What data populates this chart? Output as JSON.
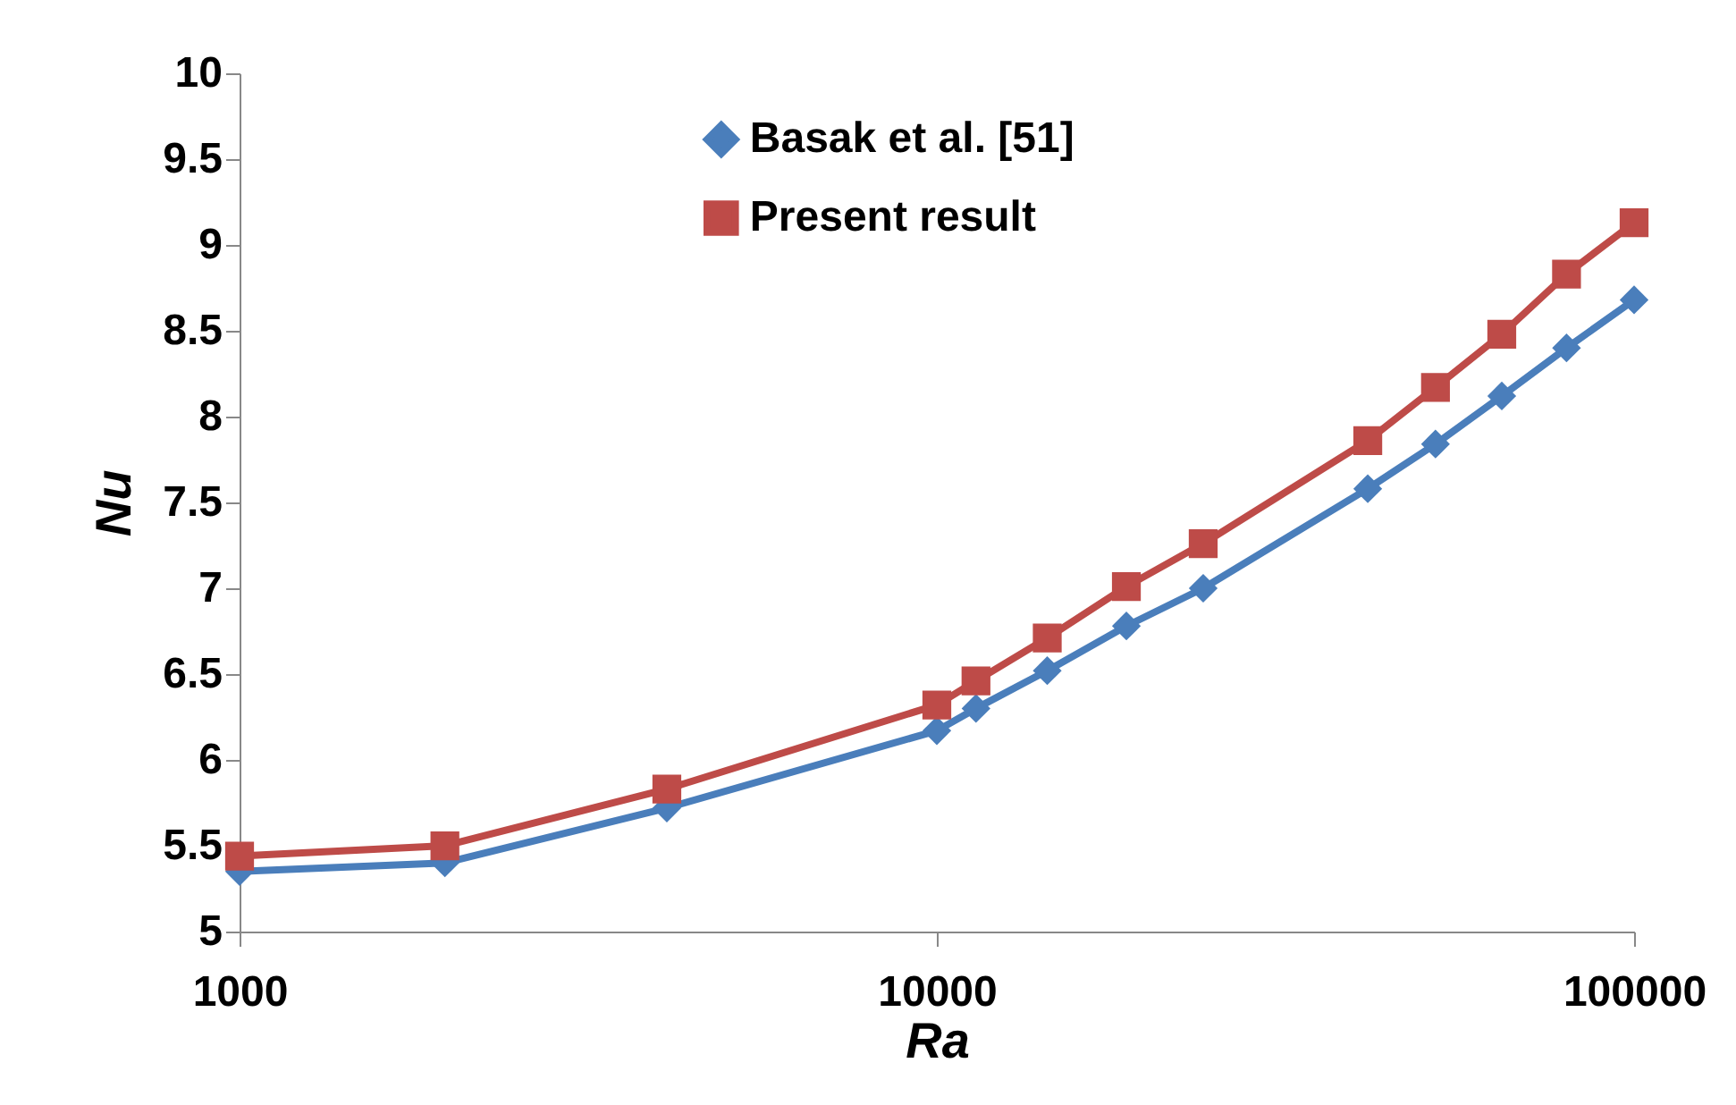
{
  "chart_data": {
    "type": "line",
    "xlabel": "Ra",
    "ylabel": "Nu",
    "x": [
      1000,
      1970,
      4100,
      10000,
      11380,
      14400,
      18700,
      24100,
      41500,
      51900,
      64600,
      80000,
      100000
    ],
    "series": [
      {
        "name": "Basak et al. [51]",
        "color": "#4a7ebb",
        "marker": "diamond",
        "values": [
          5.35,
          5.4,
          5.72,
          6.17,
          6.3,
          6.52,
          6.78,
          7.0,
          7.58,
          7.84,
          8.12,
          8.4,
          8.68
        ]
      },
      {
        "name": "Present result",
        "color": "#be4b48",
        "marker": "square",
        "values": [
          5.44,
          5.5,
          5.83,
          6.32,
          6.46,
          6.71,
          7.01,
          7.26,
          7.86,
          8.17,
          8.48,
          8.83,
          9.13
        ]
      }
    ],
    "log": "x",
    "xlim": [
      1000,
      100000
    ],
    "xticks": [
      1000,
      10000,
      100000
    ],
    "ylim": [
      5,
      10
    ],
    "yticks": [
      5,
      5.5,
      6,
      6.5,
      7,
      7.5,
      8,
      8.5,
      9,
      9.5,
      10
    ],
    "grid": false,
    "legend": "top"
  }
}
